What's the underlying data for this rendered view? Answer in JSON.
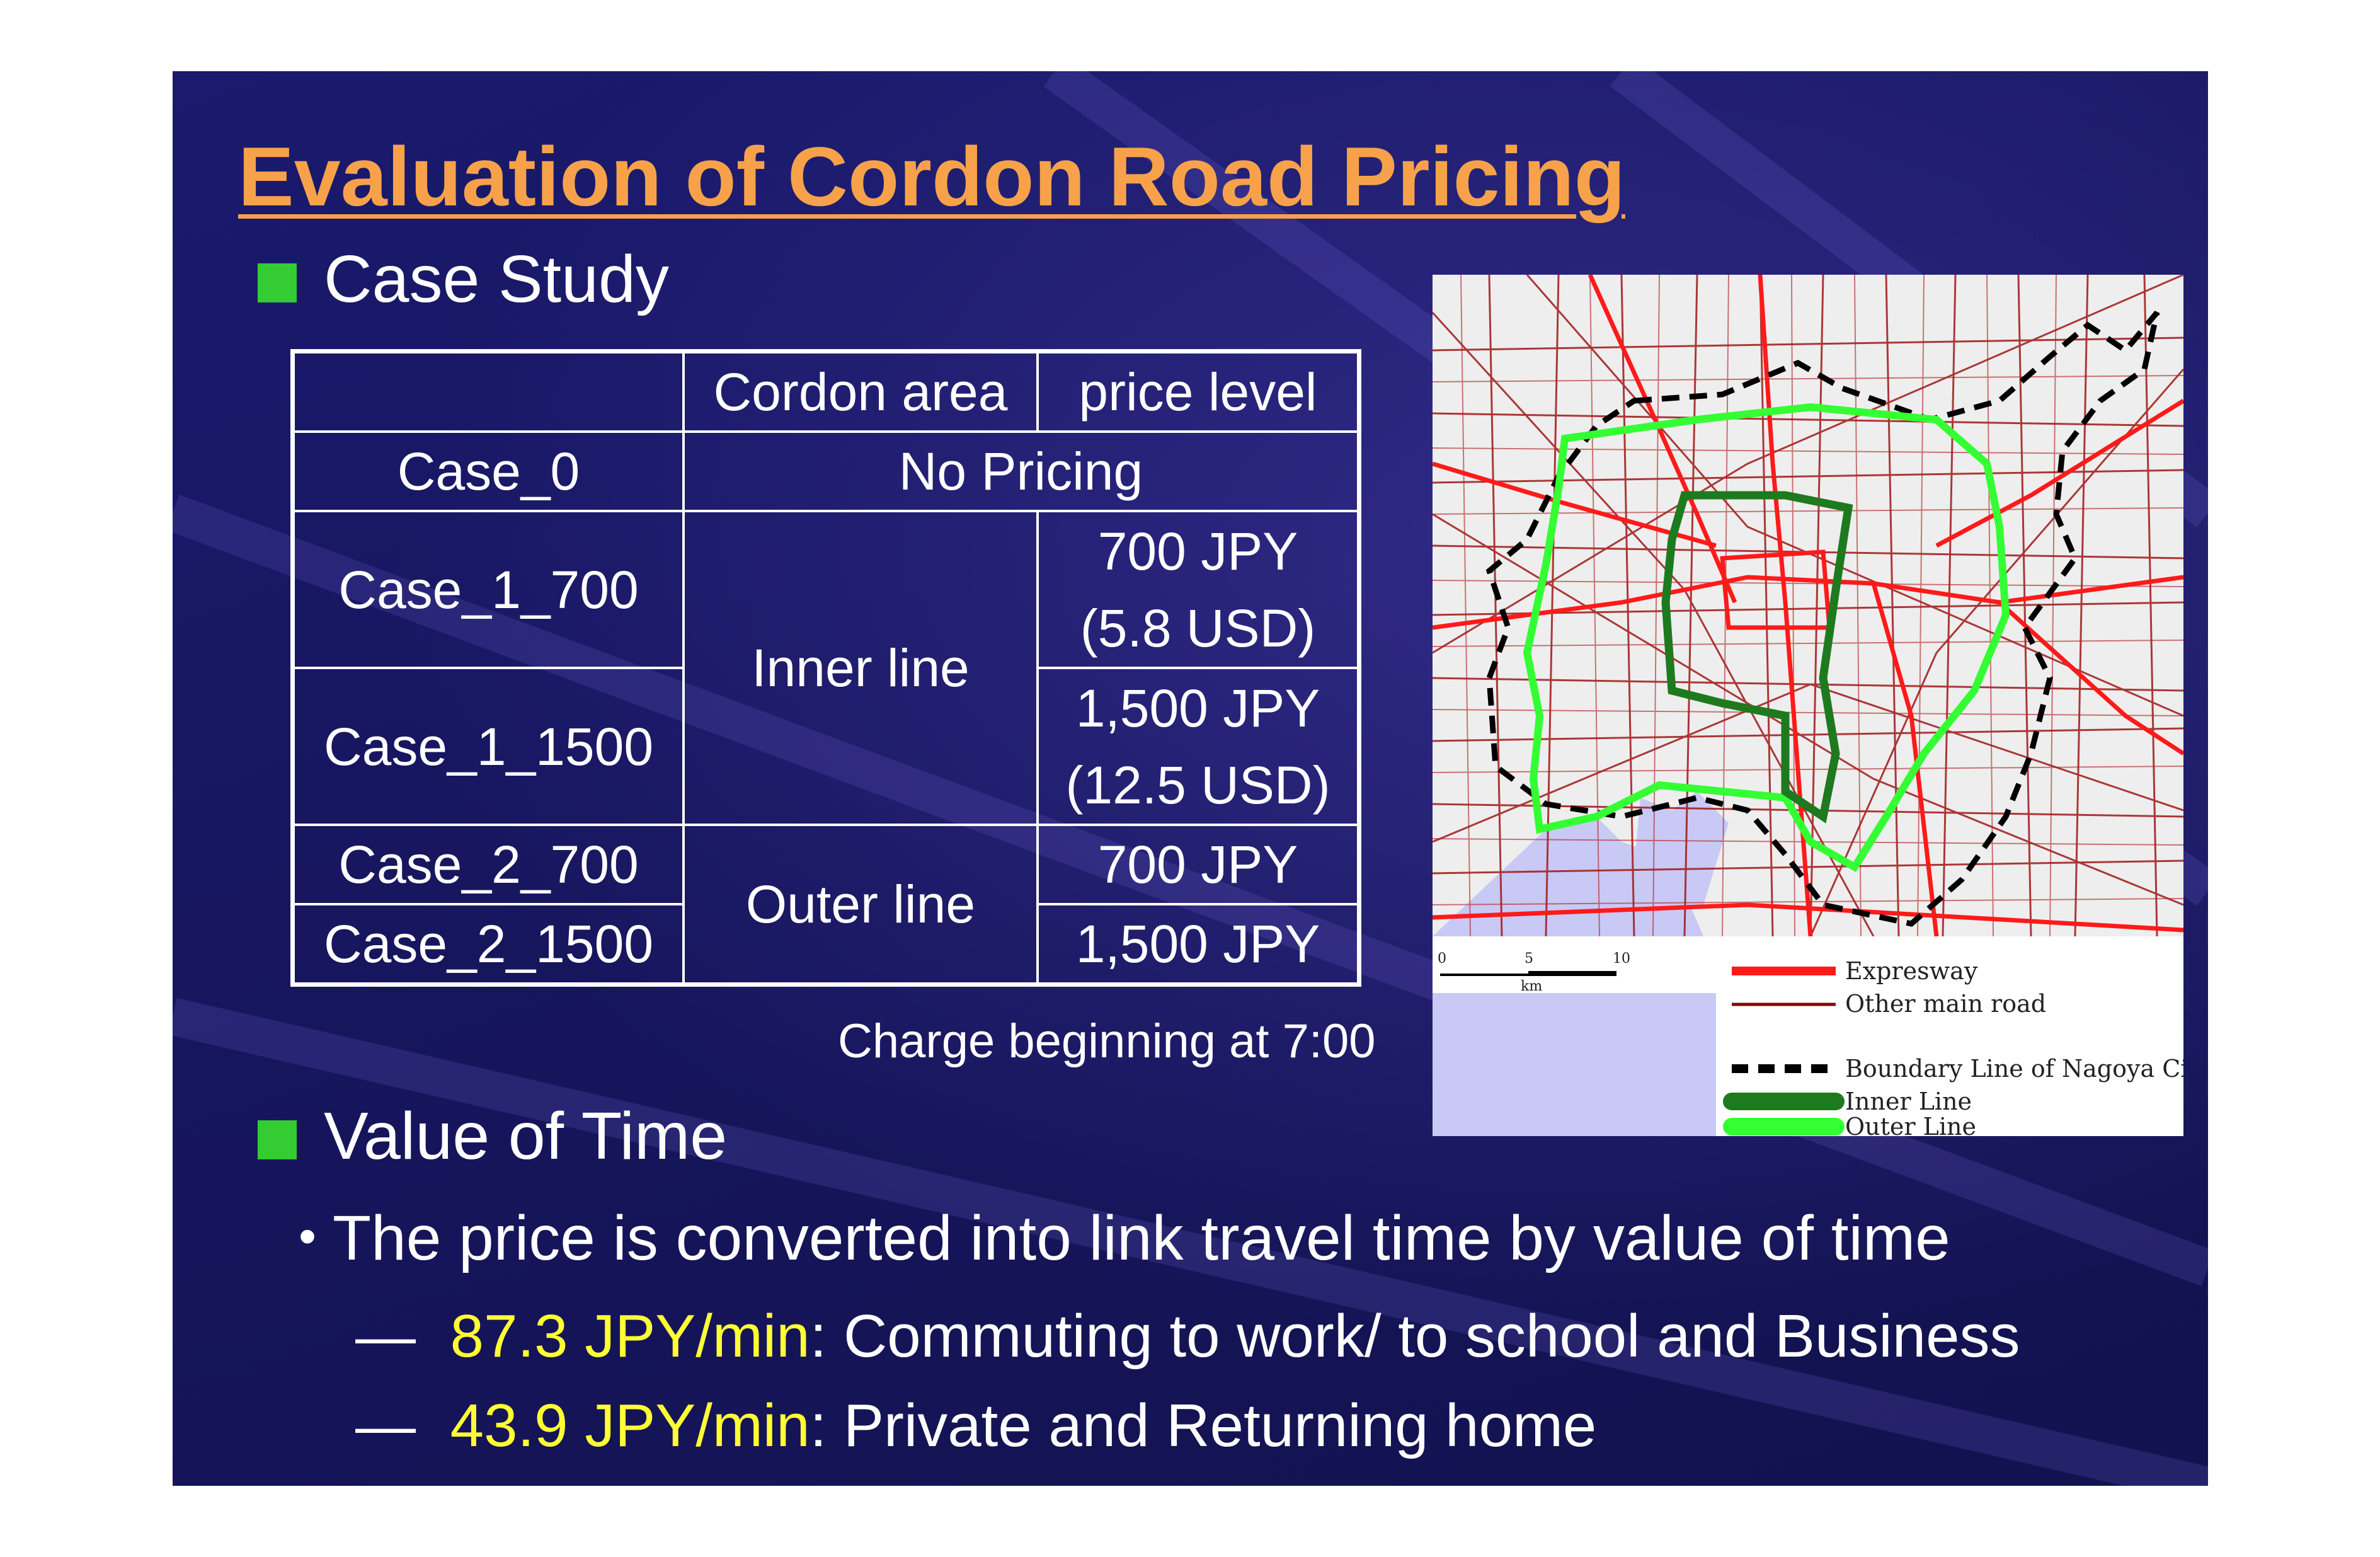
{
  "title": "Evaluation of Cordon Road Pricing",
  "case_study": {
    "heading": "Case Study",
    "table": {
      "headers": [
        "",
        "Cordon area",
        "price level"
      ],
      "case0": {
        "case": "Case_0",
        "value": "No Pricing"
      },
      "inner": {
        "area": "Inner line",
        "rows": [
          {
            "case": "Case_1_700",
            "price_line1": "700 JPY",
            "price_line2": "(5.8 USD)"
          },
          {
            "case": "Case_1_1500",
            "price_line1": "1,500 JPY",
            "price_line2": "(12.5 USD)"
          }
        ]
      },
      "outer": {
        "area": "Outer line",
        "rows": [
          {
            "case": "Case_2_700",
            "price": "700 JPY"
          },
          {
            "case": "Case_2_1500",
            "price": "1,500 JPY"
          }
        ]
      }
    },
    "note": "Charge beginning at 7:00"
  },
  "map": {
    "scale": {
      "ticks": [
        "0",
        "5",
        "10"
      ],
      "unit": "km"
    },
    "legend": [
      {
        "label": "Expresway",
        "color": "#ff1a1a",
        "style": "solid-thick"
      },
      {
        "label": "Other main road",
        "color": "#8b0000",
        "style": "solid-thin"
      },
      {
        "label": "Boundary Line of Nagoya City",
        "color": "#000000",
        "style": "dashed"
      },
      {
        "label": "Inner Line",
        "color": "#1e7a1e",
        "style": "solid-thick"
      },
      {
        "label": "Outer Line",
        "color": "#33ff33",
        "style": "solid-thick"
      }
    ]
  },
  "value_of_time": {
    "heading": "Value of Time",
    "bullet": "The price is converted into link travel time by value of time",
    "items": [
      {
        "dash": "—",
        "rate": "87.3 JPY/min",
        "desc": ": Commuting to work/ to school and Business"
      },
      {
        "dash": "—",
        "rate": "43.9 JPY/min",
        "desc": ": Private and Returning home"
      }
    ]
  },
  "colors": {
    "title": "#f7a24a",
    "highlight": "#ffff33",
    "bullet": "#33cc33",
    "background": "#17165f"
  }
}
